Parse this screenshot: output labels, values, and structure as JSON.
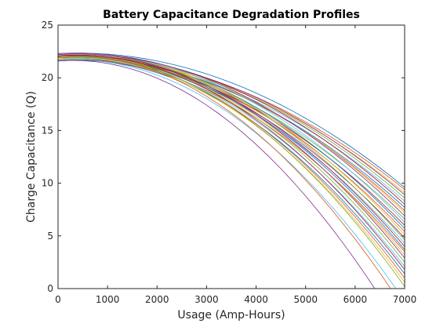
{
  "chart_data": {
    "type": "line",
    "title": "Battery Capacitance Degradation Profiles",
    "xlabel": "Usage (Amp-Hours)",
    "ylabel": "Charge Capacitance (Q)",
    "xlim": [
      0,
      7000
    ],
    "ylim": [
      0,
      25
    ],
    "xticks": [
      0,
      1000,
      2000,
      3000,
      4000,
      5000,
      6000,
      7000
    ],
    "yticks": [
      0,
      5,
      10,
      15,
      20,
      25
    ],
    "grid": false,
    "legend": false,
    "x": [
      0,
      250,
      500,
      750,
      1000,
      1250,
      1500,
      1750,
      2000,
      2250,
      2500,
      2750,
      3000,
      3250,
      3500,
      3750,
      4000,
      4250,
      4500,
      4750,
      5000,
      5250,
      5500,
      5750,
      6000,
      6250,
      6500,
      6750,
      7000
    ],
    "series_params": [
      {
        "q0": 22.3,
        "peak": 400,
        "end": 9.6,
        "color": "#0072BD"
      },
      {
        "q0": 22.0,
        "peak": 300,
        "end": 9.4,
        "color": "#D95319"
      },
      {
        "q0": 21.8,
        "peak": 350,
        "end": 9.1,
        "color": "#EDB120"
      },
      {
        "q0": 21.9,
        "peak": 450,
        "end": 8.9,
        "color": "#7E2F8E"
      },
      {
        "q0": 22.1,
        "peak": 300,
        "end": 8.6,
        "color": "#77AC30"
      },
      {
        "q0": 21.7,
        "peak": 400,
        "end": 8.3,
        "color": "#4DBEEE"
      },
      {
        "q0": 22.2,
        "peak": 350,
        "end": 8.0,
        "color": "#A2142F"
      },
      {
        "q0": 21.9,
        "peak": 300,
        "end": 7.7,
        "color": "#0072BD"
      },
      {
        "q0": 21.6,
        "peak": 500,
        "end": 7.4,
        "color": "#D95319"
      },
      {
        "q0": 22.0,
        "peak": 400,
        "end": 7.2,
        "color": "#EDB120"
      },
      {
        "q0": 22.3,
        "peak": 350,
        "end": 6.9,
        "color": "#7E2F8E"
      },
      {
        "q0": 21.8,
        "peak": 300,
        "end": 6.6,
        "color": "#77AC30"
      },
      {
        "q0": 22.1,
        "peak": 450,
        "end": 6.3,
        "color": "#4DBEEE"
      },
      {
        "q0": 21.7,
        "peak": 350,
        "end": 6.0,
        "color": "#A2142F"
      },
      {
        "q0": 22.0,
        "peak": 400,
        "end": 5.7,
        "color": "#0072BD"
      },
      {
        "q0": 21.9,
        "peak": 300,
        "end": 5.4,
        "color": "#D95319"
      },
      {
        "q0": 22.2,
        "peak": 350,
        "end": 5.1,
        "color": "#EDB120"
      },
      {
        "q0": 21.6,
        "peak": 400,
        "end": 4.8,
        "color": "#7E2F8E"
      },
      {
        "q0": 22.0,
        "peak": 450,
        "end": 4.6,
        "color": "#77AC30"
      },
      {
        "q0": 21.8,
        "peak": 300,
        "end": 4.3,
        "color": "#4DBEEE"
      },
      {
        "q0": 22.1,
        "peak": 350,
        "end": 4.0,
        "color": "#A2142F"
      },
      {
        "q0": 21.9,
        "peak": 400,
        "end": 3.7,
        "color": "#0072BD"
      },
      {
        "q0": 21.7,
        "peak": 300,
        "end": 3.5,
        "color": "#D95319"
      },
      {
        "q0": 22.0,
        "peak": 350,
        "end": 3.2,
        "color": "#EDB120"
      },
      {
        "q0": 22.2,
        "peak": 400,
        "end": 2.9,
        "color": "#7E2F8E"
      },
      {
        "q0": 21.8,
        "peak": 450,
        "end": 2.5,
        "color": "#77AC30"
      },
      {
        "q0": 21.9,
        "peak": 300,
        "end": 2.1,
        "color": "#4DBEEE"
      },
      {
        "q0": 22.1,
        "peak": 350,
        "end": 1.8,
        "color": "#A2142F"
      },
      {
        "q0": 21.6,
        "peak": 400,
        "end": 1.4,
        "color": "#0072BD"
      },
      {
        "q0": 22.0,
        "peak": 300,
        "end": 1.0,
        "color": "#D95319"
      },
      {
        "q0": 21.8,
        "peak": 350,
        "end": 0.6,
        "color": "#EDB120"
      },
      {
        "q0": 21.9,
        "peak": 400,
        "end": 0.2,
        "color": "#77AC30"
      },
      {
        "q0": 21.7,
        "peak": 300,
        "end": -1.2,
        "color": "#4DBEEE"
      },
      {
        "q0": 22.0,
        "peak": 350,
        "end": -2.0,
        "color": "#D95319"
      },
      {
        "q0": 21.6,
        "peak": 300,
        "end": -4.5,
        "color": "#7E2F8E"
      }
    ]
  }
}
